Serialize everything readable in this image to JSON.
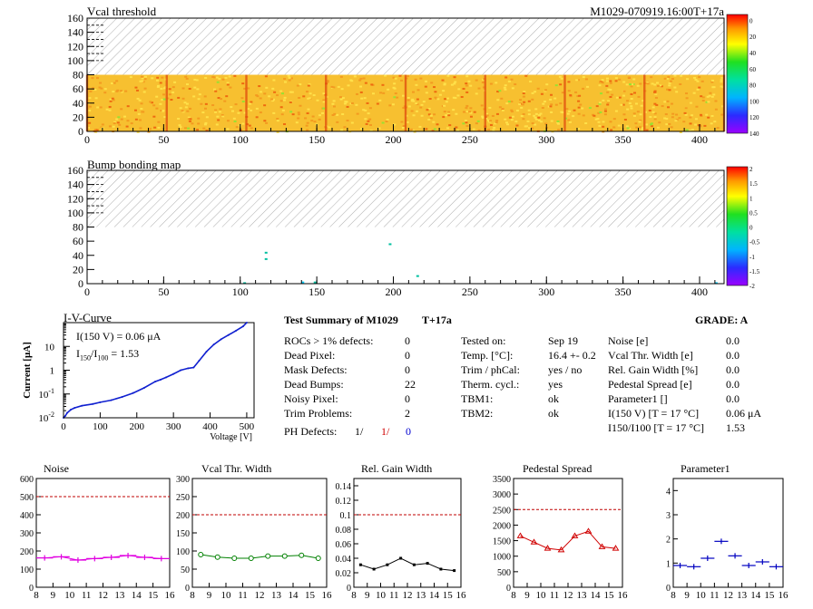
{
  "header": {
    "map1_title": "Vcal threshold",
    "module_id": "M1029-070919.16:00T+17a",
    "map2_title": "Bump bonding map"
  },
  "chart_data": [
    {
      "type": "heatmap",
      "title": "Vcal threshold",
      "xlim": [
        0,
        416
      ],
      "ylim": [
        0,
        160
      ],
      "xticks": [
        0,
        50,
        100,
        150,
        200,
        250,
        300,
        350,
        400
      ],
      "yticks": [
        0,
        20,
        40,
        60,
        80,
        100,
        120,
        140,
        160
      ],
      "filled_rows": [
        0,
        80
      ],
      "colorbar": {
        "ticks": [
          "0",
          "20",
          "40",
          "60",
          "80",
          "100",
          "120",
          "140"
        ]
      }
    },
    {
      "type": "heatmap",
      "title": "Bump bonding map",
      "xlim": [
        0,
        416
      ],
      "ylim": [
        0,
        160
      ],
      "xticks": [
        0,
        50,
        100,
        150,
        200,
        250,
        300,
        350,
        400
      ],
      "yticks": [
        0,
        20,
        40,
        60,
        80,
        100,
        120,
        140,
        160
      ],
      "colorbar": {
        "ticks": [
          "2",
          "1.5",
          "1",
          "0.5",
          "0",
          "-0.5",
          "-1",
          "-1.5",
          "-2"
        ]
      }
    },
    {
      "type": "line",
      "title": "I-V-Curve",
      "xlabel": "Voltage [V]",
      "ylabel": "Current [μA]",
      "xlim": [
        0,
        520
      ],
      "ylog": true,
      "ylim": [
        0.01,
        100
      ],
      "xticks": [
        "0",
        "100",
        "200",
        "300",
        "400",
        "500"
      ],
      "x": [
        0,
        5,
        10,
        20,
        30,
        50,
        80,
        100,
        130,
        160,
        190,
        220,
        250,
        265,
        280,
        300,
        320,
        340,
        355,
        370,
        390,
        410,
        430,
        450,
        470,
        490,
        500
      ],
      "y": [
        0.01,
        0.012,
        0.016,
        0.022,
        0.026,
        0.032,
        0.038,
        0.045,
        0.055,
        0.075,
        0.11,
        0.18,
        0.33,
        0.4,
        0.5,
        0.7,
        1.0,
        1.2,
        1.3,
        2.5,
        6,
        12,
        20,
        30,
        45,
        70,
        100
      ],
      "legend": [
        "I(150 V) = 0.06 μA",
        "I150/I100 = 1.53"
      ]
    },
    {
      "type": "line",
      "title": "Noise",
      "color": "#e000e0",
      "xlim": [
        8,
        16
      ],
      "ylim": [
        0,
        600
      ],
      "xticks": [
        "8",
        "9",
        "10",
        "11",
        "12",
        "13",
        "14",
        "15",
        "16"
      ],
      "yticks": [
        "0",
        "100",
        "200",
        "300",
        "400",
        "500",
        "600"
      ],
      "threshold": 500,
      "x": [
        8.5,
        9.5,
        10.5,
        11.5,
        12.5,
        13.5,
        14.5,
        15.5
      ],
      "values": [
        162,
        168,
        150,
        158,
        165,
        175,
        165,
        158
      ]
    },
    {
      "type": "line",
      "title": "Vcal Thr. Width",
      "color": "#008000",
      "xlim": [
        8,
        16
      ],
      "ylim": [
        0,
        300
      ],
      "xticks": [
        "8",
        "9",
        "10",
        "11",
        "12",
        "13",
        "14",
        "15",
        "16"
      ],
      "yticks": [
        "0",
        "50",
        "100",
        "150",
        "200",
        "250",
        "300"
      ],
      "threshold": 200,
      "x": [
        8.5,
        9.5,
        10.5,
        11.5,
        12.5,
        13.5,
        14.5,
        15.5
      ],
      "values": [
        90,
        83,
        80,
        80,
        86,
        86,
        88,
        80
      ]
    },
    {
      "type": "line",
      "title": "Rel. Gain Width",
      "color": "#000000",
      "xlim": [
        8,
        16
      ],
      "ylim": [
        0,
        0.15
      ],
      "xticks": [
        "8",
        "9",
        "10",
        "11",
        "12",
        "13",
        "14",
        "15",
        "16"
      ],
      "yticks": [
        "0",
        "0.02",
        "0.04",
        "0.06",
        "0.08",
        "0.1",
        "0.12",
        "0.14"
      ],
      "threshold": 0.1,
      "x": [
        8.5,
        9.5,
        10.5,
        11.5,
        12.5,
        13.5,
        14.5,
        15.5
      ],
      "values": [
        0.031,
        0.025,
        0.031,
        0.04,
        0.031,
        0.033,
        0.025,
        0.023
      ]
    },
    {
      "type": "line",
      "title": "Pedestal Spread",
      "color": "#d00000",
      "xlim": [
        8,
        16
      ],
      "ylim": [
        0,
        3500
      ],
      "xticks": [
        "8",
        "9",
        "10",
        "11",
        "12",
        "13",
        "14",
        "15",
        "16"
      ],
      "yticks": [
        "0",
        "500",
        "1000",
        "1500",
        "2000",
        "2500",
        "3000",
        "3500"
      ],
      "threshold": 2500,
      "x": [
        8.5,
        9.5,
        10.5,
        11.5,
        12.5,
        13.5,
        14.5,
        15.5
      ],
      "values": [
        1650,
        1450,
        1250,
        1200,
        1650,
        1800,
        1300,
        1250
      ]
    },
    {
      "type": "scatter",
      "title": "Parameter1",
      "color": "#0000c0",
      "xlim": [
        8,
        16
      ],
      "ylim": [
        0,
        4.5
      ],
      "xticks": [
        "8",
        "9",
        "10",
        "11",
        "12",
        "13",
        "14",
        "15",
        "16"
      ],
      "yticks": [
        "0",
        "1",
        "2",
        "3",
        "4"
      ],
      "x": [
        8.5,
        9.5,
        10.5,
        11.5,
        12.5,
        13.5,
        14.5,
        15.5
      ],
      "values": [
        0.9,
        0.85,
        1.2,
        1.9,
        1.3,
        0.9,
        1.05,
        0.85
      ]
    }
  ],
  "summary": {
    "title": "Test Summary of M1029",
    "tag": "T+17a",
    "grade": "GRADE:  A",
    "left": [
      {
        "k": "ROCs > 1% defects:",
        "v": "0"
      },
      {
        "k": "Dead Pixel:",
        "v": "0"
      },
      {
        "k": "Mask Defects:",
        "v": "0"
      },
      {
        "k": "Dead Bumps:",
        "v": "22"
      },
      {
        "k": "Noisy Pixel:",
        "v": "0"
      },
      {
        "k": "Trim Problems:",
        "v": "2"
      }
    ],
    "ph_label": "PH Defects:",
    "ph_values": [
      "1/",
      "1/",
      "0"
    ],
    "ph_colors": [
      "#000000",
      "#d00000",
      "#0000d0"
    ],
    "mid": [
      {
        "k": "Tested on:",
        "v": "Sep 19"
      },
      {
        "k": "Temp. [°C]:",
        "v": "16.4 +- 0.2"
      },
      {
        "k": "Trim / phCal:",
        "v": "yes / no"
      },
      {
        "k": "Therm. cycl.:",
        "v": "yes"
      },
      {
        "k": "TBM1:",
        "v": "ok"
      },
      {
        "k": "TBM2:",
        "v": "ok"
      }
    ],
    "right": [
      {
        "k": "Noise [e]",
        "v": "0.0"
      },
      {
        "k": "Vcal Thr. Width [e]",
        "v": "0.0"
      },
      {
        "k": "Rel. Gain Width [%]",
        "v": "0.0"
      },
      {
        "k": "Pedestal Spread [e]",
        "v": "0.0"
      },
      {
        "k": "Parameter1 []",
        "v": "0.0"
      },
      {
        "k": "I(150 V) [T = 17 °C]",
        "v": "0.06 μA"
      },
      {
        "k": "I150/I100  [T = 17 °C]",
        "v": "1.53"
      }
    ]
  }
}
